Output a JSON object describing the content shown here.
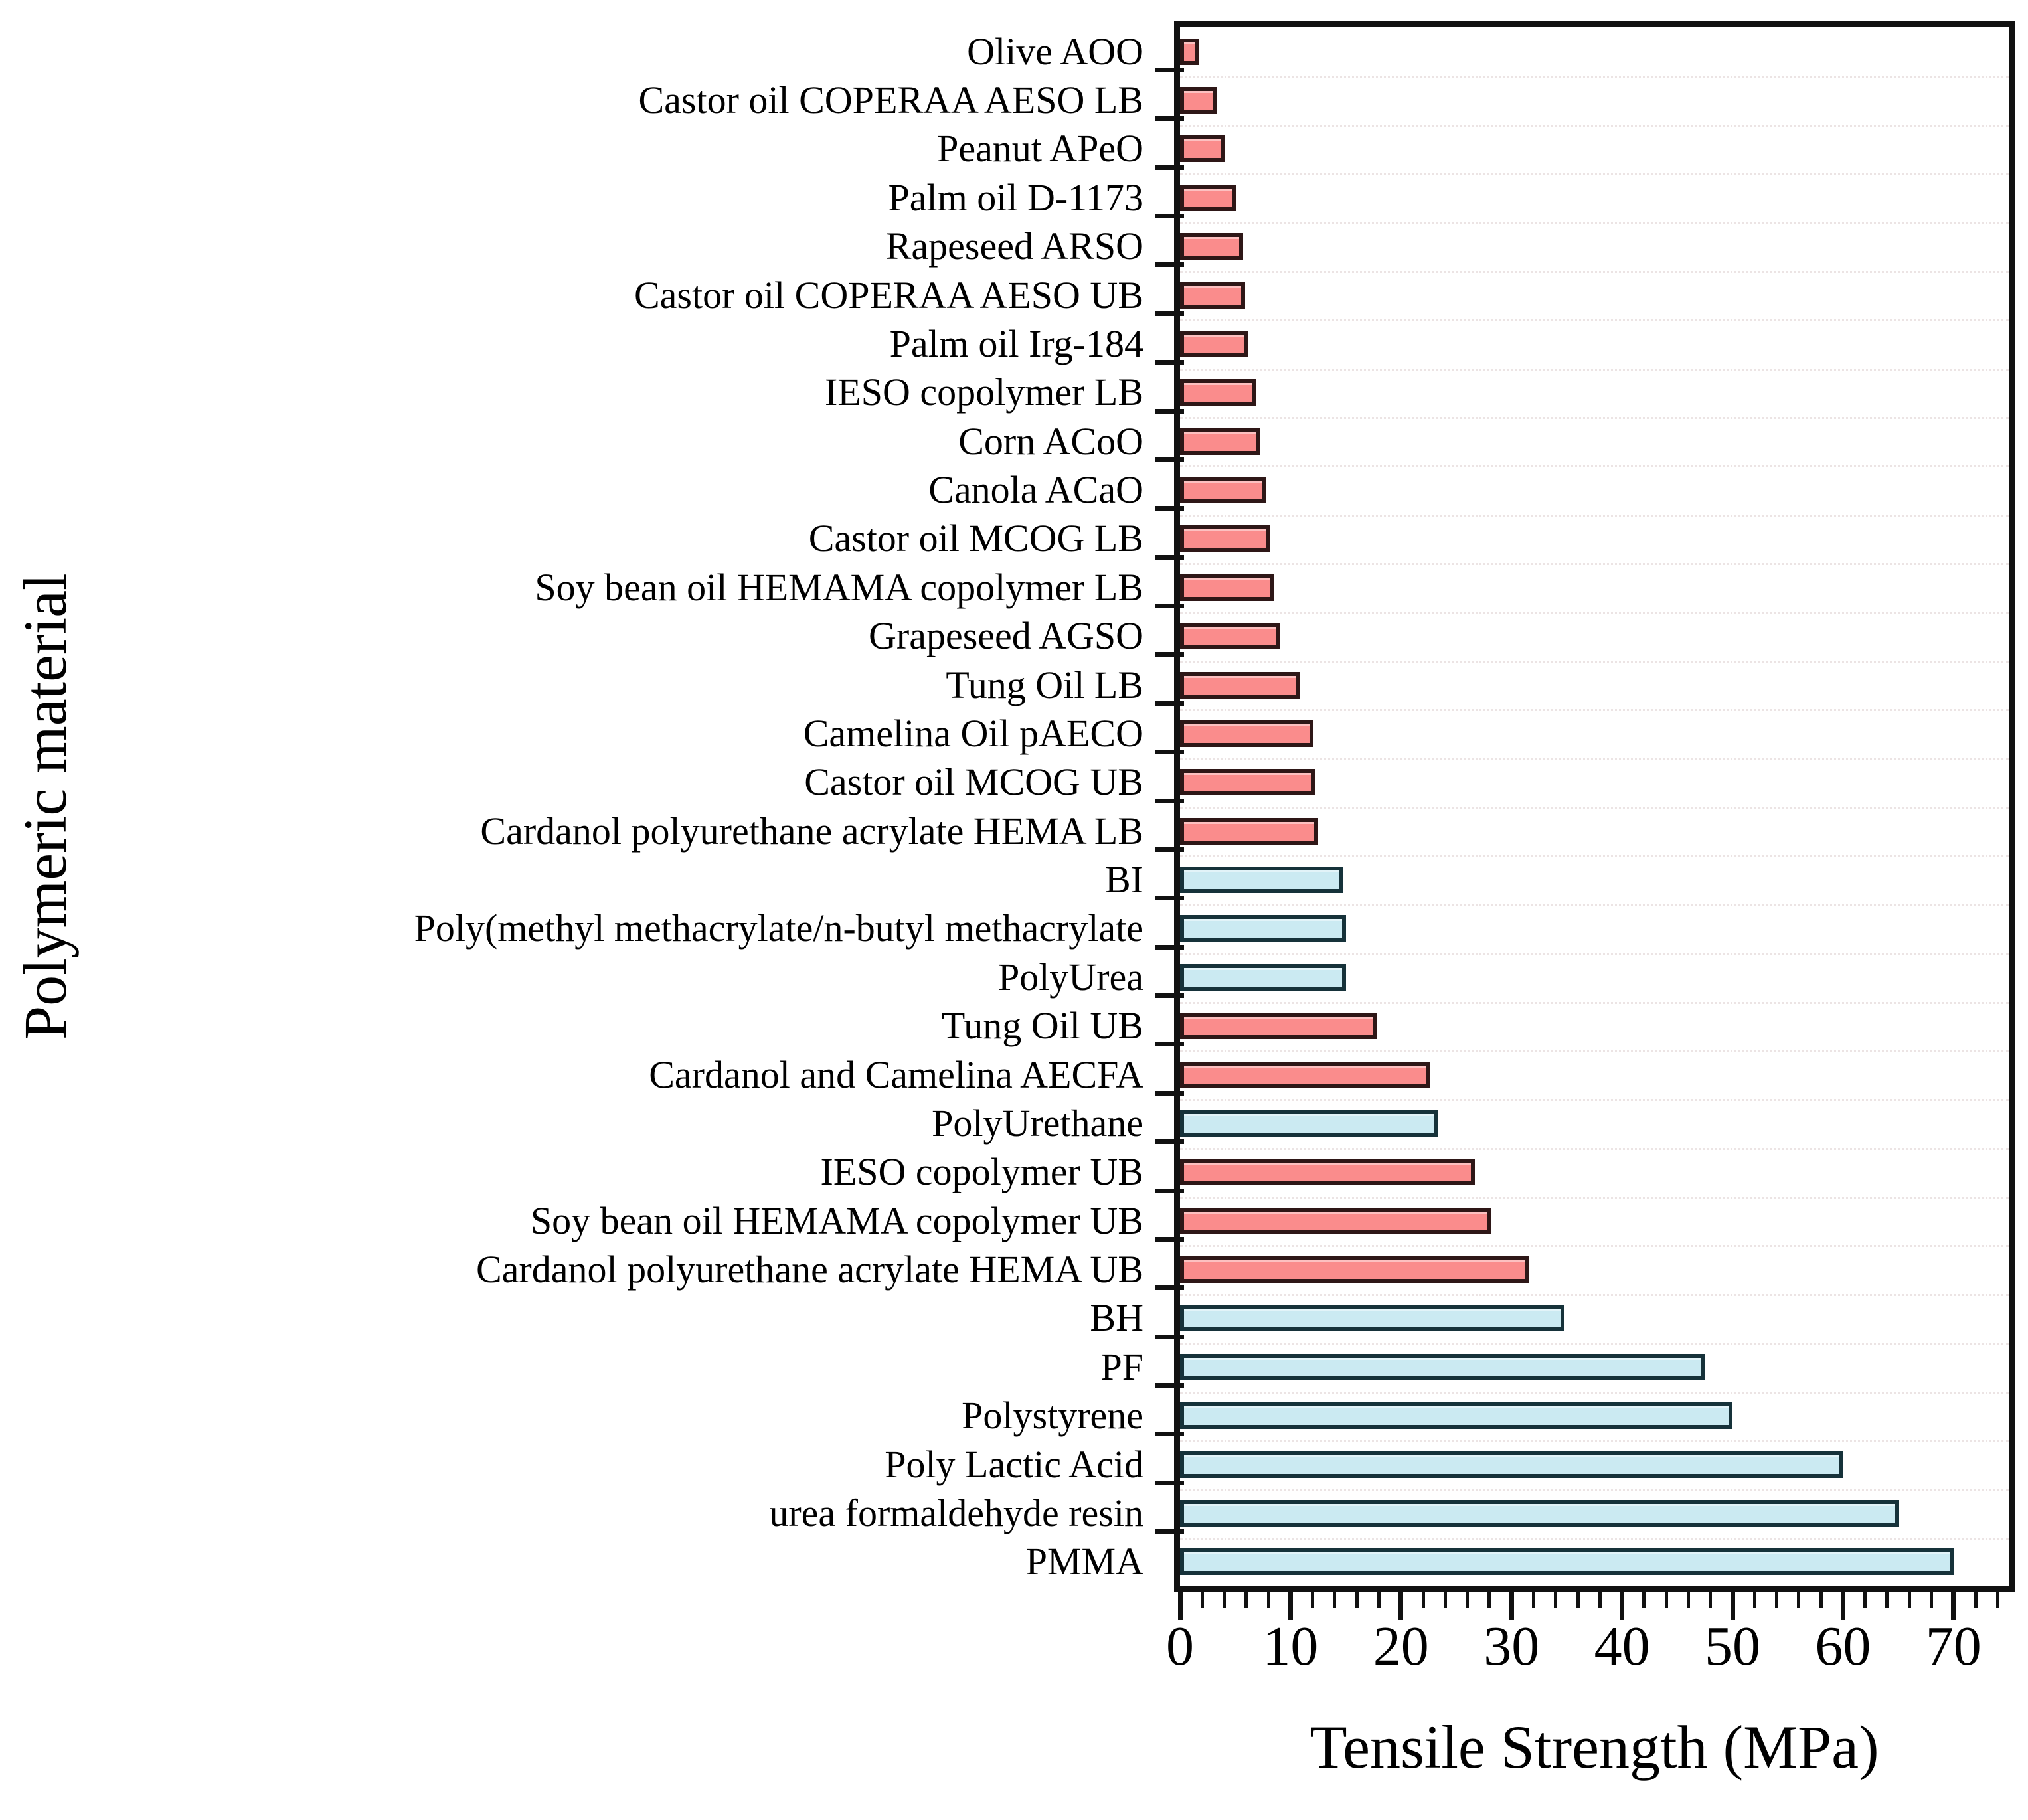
{
  "figure": {
    "background": "#ffffff",
    "frame_color": "#111111",
    "grid_color": "#ece4e4",
    "tick_color": "#111111",
    "palette": {
      "pink": {
        "fill": "#fa8c8c",
        "border": "#2e1717"
      },
      "blue": {
        "fill": "#cbeaf2",
        "border": "#16323a"
      }
    }
  },
  "chart_data": {
    "type": "bar",
    "orientation": "horizontal",
    "title": "",
    "xlabel": "Tensile Strength (MPa)",
    "ylabel": "Polymeric material",
    "xlim": [
      0,
      75
    ],
    "x_major_ticks": [
      0,
      10,
      20,
      30,
      40,
      50,
      60,
      70
    ],
    "x_minor_tick_step": 2,
    "grid": "dotted-horizontal",
    "legend": "none",
    "categories": [
      "Olive AOO",
      "Castor oil COPERAA AESO LB",
      "Peanut APeO",
      "Palm oil D-1173",
      "Rapeseed ARSO",
      "Castor oil COPERAA AESO UB",
      "Palm oil Irg-184",
      "IESO copolymer LB",
      "Corn ACoO",
      "Canola ACaO",
      "Castor oil MCOG LB",
      "Soy bean oil HEMAMA copolymer LB",
      "Grapeseed AGSO",
      "Tung Oil LB",
      "Camelina Oil pAECO",
      "Castor oil MCOG UB",
      "Cardanol polyurethane acrylate HEMA LB",
      "BI",
      "Poly(methyl methacrylate/n-butyl methacrylate",
      "PolyUrea",
      "Tung Oil UB",
      "Cardanol and Camelina AECFA",
      "PolyUrethane",
      "IESO copolymer UB",
      "Soy bean oil HEMAMA copolymer UB",
      "Cardanol polyurethane acrylate HEMA UB",
      "BH",
      "PF",
      "Polystyrene",
      "Poly Lactic Acid",
      "urea formaldehyde resin",
      "PMMA"
    ],
    "values": [
      1.7,
      3.3,
      4.1,
      5.1,
      5.7,
      5.9,
      6.2,
      6.9,
      7.2,
      7.8,
      8.2,
      8.5,
      9.1,
      10.9,
      12.1,
      12.2,
      12.5,
      14.7,
      15.0,
      15.0,
      17.8,
      22.6,
      23.3,
      26.7,
      28.1,
      31.6,
      34.8,
      47.5,
      50.0,
      60.0,
      65.0,
      70.0
    ],
    "colors": [
      "pink",
      "pink",
      "pink",
      "pink",
      "pink",
      "pink",
      "pink",
      "pink",
      "pink",
      "pink",
      "pink",
      "pink",
      "pink",
      "pink",
      "pink",
      "pink",
      "pink",
      "blue",
      "blue",
      "blue",
      "pink",
      "pink",
      "blue",
      "pink",
      "pink",
      "pink",
      "blue",
      "blue",
      "blue",
      "blue",
      "blue",
      "blue"
    ]
  }
}
